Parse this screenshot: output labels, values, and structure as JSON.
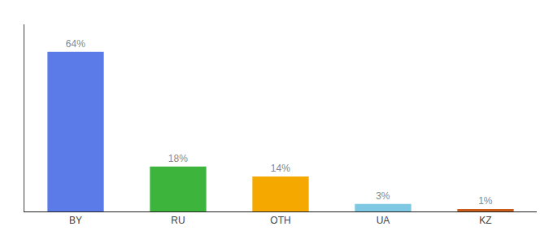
{
  "chart_data": {
    "type": "bar",
    "categories": [
      "BY",
      "RU",
      "OTH",
      "UA",
      "KZ"
    ],
    "values": [
      64,
      18,
      14,
      3,
      1
    ],
    "value_labels": [
      "64%",
      "18%",
      "14%",
      "3%",
      "1%"
    ],
    "colors": [
      "#5b7be8",
      "#3db53d",
      "#f5a800",
      "#7ec8e3",
      "#c95c1a"
    ],
    "ylim": [
      0,
      75
    ],
    "grid": false,
    "data_labels": true,
    "tick_labels": "x"
  }
}
